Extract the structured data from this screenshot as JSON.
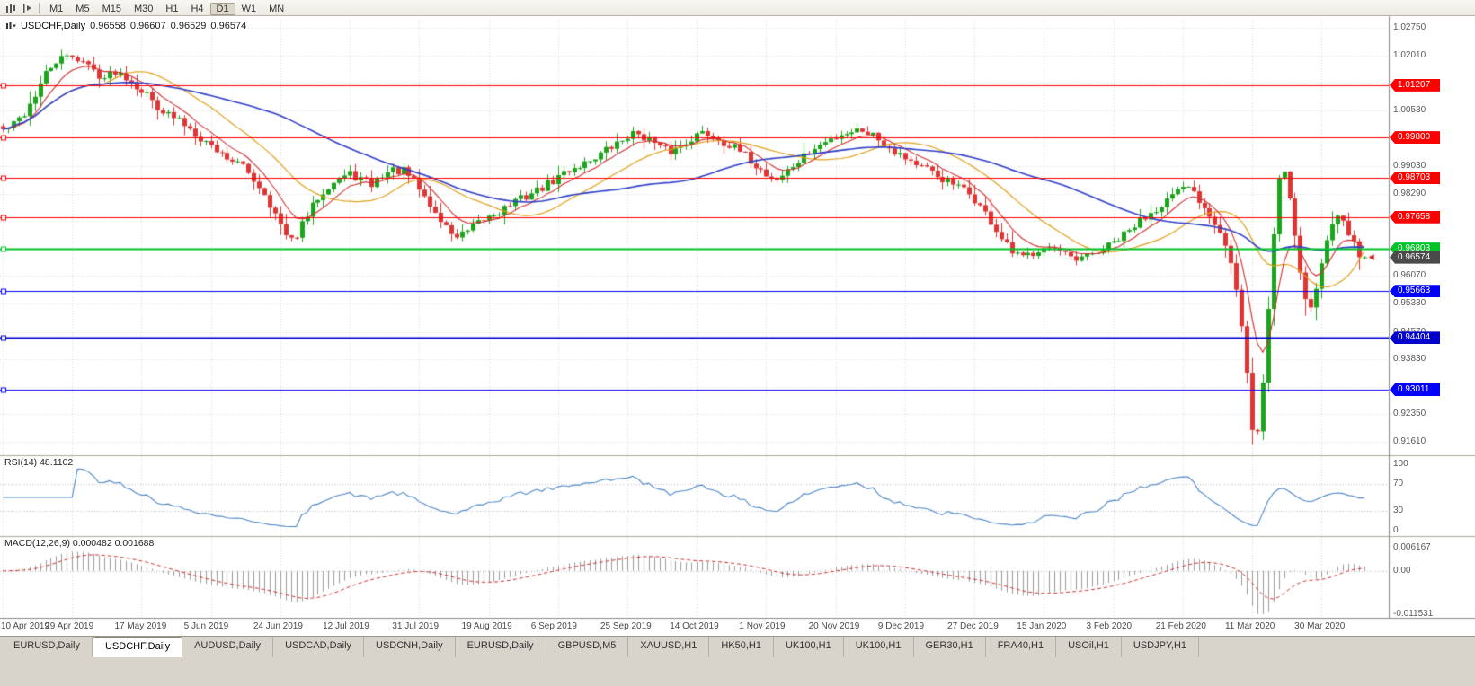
{
  "toolbar": {
    "timeframes": [
      {
        "label": "M1",
        "active": false
      },
      {
        "label": "M5",
        "active": false
      },
      {
        "label": "M15",
        "active": false
      },
      {
        "label": "M30",
        "active": false
      },
      {
        "label": "H1",
        "active": false
      },
      {
        "label": "H4",
        "active": false
      },
      {
        "label": "D1",
        "active": true
      },
      {
        "label": "W1",
        "active": false
      },
      {
        "label": "MN",
        "active": false
      }
    ]
  },
  "chart": {
    "title": {
      "symbol": "USDCHF,Daily",
      "open": "0.96558",
      "high": "0.96607",
      "low": "0.96529",
      "close": "0.96574"
    },
    "price_scale": {
      "ticks": [
        {
          "v": 1.0275,
          "t": "1.02750"
        },
        {
          "v": 1.0201,
          "t": "1.02010"
        },
        {
          "v": 1.0053,
          "t": "1.00530"
        },
        {
          "v": 0.9903,
          "t": "0.99030"
        },
        {
          "v": 0.9829,
          "t": "0.98290"
        },
        {
          "v": 0.9755,
          "t": "0.97550"
        },
        {
          "v": 0.9607,
          "t": "0.96070"
        },
        {
          "v": 0.9533,
          "t": "0.95330"
        },
        {
          "v": 0.9457,
          "t": "0.94570"
        },
        {
          "v": 0.9383,
          "t": "0.93830"
        },
        {
          "v": 0.9235,
          "t": "0.92350"
        },
        {
          "v": 0.9161,
          "t": "0.91610"
        }
      ],
      "hidden_grid": [
        1.0127,
        0.9979,
        0.9681,
        0.9309
      ],
      "current": {
        "price": 0.96574,
        "label": "0.96574",
        "color": "#4A4A4A"
      }
    }
  },
  "rsi": {
    "title": "RSI(14) 48.1102",
    "period": 14,
    "levels": [
      "100",
      "70",
      "30",
      "0"
    ]
  },
  "macd": {
    "title": "MACD(12,26,9) 0.000482 0.001688",
    "fast": 12,
    "slow": 26,
    "signal": 9,
    "scale": {
      "top": "0.006167",
      "zero": "0.00",
      "bottom": "-0.011531"
    },
    "ylim": [
      -0.011531,
      0.006167
    ]
  },
  "chart_data": {
    "type": "candlestick",
    "symbol": "USDCHF",
    "timeframe": "Daily",
    "num_candles": 256,
    "ylim": [
      0.913,
      1.0297
    ],
    "x_labels": [
      {
        "label": "10 Apr 2019",
        "day": 0
      },
      {
        "label": "29 Apr 2019",
        "day": 13
      },
      {
        "label": "17 May 2019",
        "day": 26
      },
      {
        "label": "5 Jun 2019",
        "day": 39
      },
      {
        "label": "24 Jun 2019",
        "day": 52
      },
      {
        "label": "12 Jul 2019",
        "day": 65
      },
      {
        "label": "31 Jul 2019",
        "day": 78
      },
      {
        "label": "19 Aug 2019",
        "day": 91
      },
      {
        "label": "6 Sep 2019",
        "day": 104
      },
      {
        "label": "25 Sep 2019",
        "day": 117
      },
      {
        "label": "14 Oct 2019",
        "day": 130
      },
      {
        "label": "1 Nov 2019",
        "day": 143
      },
      {
        "label": "20 Nov 2019",
        "day": 156
      },
      {
        "label": "9 Dec 2019",
        "day": 169
      },
      {
        "label": "27 Dec 2019",
        "day": 182
      },
      {
        "label": "15 Jan 2020",
        "day": 195
      },
      {
        "label": "3 Feb 2020",
        "day": 208
      },
      {
        "label": "21 Feb 2020",
        "day": 221
      },
      {
        "label": "11 Mar 2020",
        "day": 234
      },
      {
        "label": "30 Mar 2020",
        "day": 247
      }
    ],
    "anchors": [
      [
        0,
        1.0
      ],
      [
        2,
        1.0015
      ],
      [
        4,
        1.0045
      ],
      [
        6,
        1.0095
      ],
      [
        8,
        1.015
      ],
      [
        10,
        1.0185
      ],
      [
        13,
        1.02
      ],
      [
        15,
        1.0185
      ],
      [
        17,
        1.016
      ],
      [
        19,
        1.014
      ],
      [
        21,
        1.016
      ],
      [
        23,
        1.0145
      ],
      [
        25,
        1.012
      ],
      [
        27,
        1.0095
      ],
      [
        29,
        1.0065
      ],
      [
        31,
        1.004
      ],
      [
        33,
        1.0025
      ],
      [
        35,
        1.0005
      ],
      [
        37,
        0.998
      ],
      [
        39,
        0.9958
      ],
      [
        41,
        0.9935
      ],
      [
        43,
        0.992
      ],
      [
        45,
        0.99
      ],
      [
        47,
        0.9868
      ],
      [
        49,
        0.983
      ],
      [
        51,
        0.9772
      ],
      [
        53,
        0.9712
      ],
      [
        54,
        0.97
      ],
      [
        55,
        0.972
      ],
      [
        57,
        0.9768
      ],
      [
        59,
        0.982
      ],
      [
        61,
        0.9852
      ],
      [
        63,
        0.987
      ],
      [
        65,
        0.988
      ],
      [
        67,
        0.9868
      ],
      [
        69,
        0.9852
      ],
      [
        71,
        0.988
      ],
      [
        73,
        0.9892
      ],
      [
        75,
        0.9888
      ],
      [
        77,
        0.9862
      ],
      [
        79,
        0.982
      ],
      [
        81,
        0.9775
      ],
      [
        83,
        0.9738
      ],
      [
        85,
        0.9712
      ],
      [
        87,
        0.9725
      ],
      [
        89,
        0.9748
      ],
      [
        91,
        0.9768
      ],
      [
        93,
        0.9782
      ],
      [
        95,
        0.98
      ],
      [
        97,
        0.9815
      ],
      [
        99,
        0.983
      ],
      [
        101,
        0.9845
      ],
      [
        103,
        0.9862
      ],
      [
        105,
        0.9885
      ],
      [
        107,
        0.99
      ],
      [
        109,
        0.9912
      ],
      [
        111,
        0.9928
      ],
      [
        113,
        0.9945
      ],
      [
        115,
        0.9962
      ],
      [
        117,
        0.9985
      ],
      [
        119,
        0.9992
      ],
      [
        121,
        0.9975
      ],
      [
        123,
        0.995
      ],
      [
        125,
        0.9942
      ],
      [
        127,
        0.9958
      ],
      [
        129,
        0.998
      ],
      [
        131,
        0.9992
      ],
      [
        133,
        0.9985
      ],
      [
        135,
        0.9968
      ],
      [
        137,
        0.995
      ],
      [
        139,
        0.993
      ],
      [
        141,
        0.9905
      ],
      [
        143,
        0.988
      ],
      [
        145,
        0.9868
      ],
      [
        147,
        0.989
      ],
      [
        149,
        0.9915
      ],
      [
        151,
        0.994
      ],
      [
        153,
        0.9958
      ],
      [
        155,
        0.9975
      ],
      [
        157,
        0.999
      ],
      [
        159,
        0.9998
      ],
      [
        161,
        1.0002
      ],
      [
        163,
        0.9988
      ],
      [
        165,
        0.9965
      ],
      [
        167,
        0.9945
      ],
      [
        169,
        0.9928
      ],
      [
        171,
        0.9908
      ],
      [
        173,
        0.9892
      ],
      [
        175,
        0.9875
      ],
      [
        177,
        0.986
      ],
      [
        179,
        0.9845
      ],
      [
        181,
        0.9828
      ],
      [
        183,
        0.9795
      ],
      [
        185,
        0.9752
      ],
      [
        187,
        0.9705
      ],
      [
        189,
        0.9668
      ],
      [
        191,
        0.9655
      ],
      [
        193,
        0.9672
      ],
      [
        195,
        0.969
      ],
      [
        197,
        0.9678
      ],
      [
        199,
        0.966
      ],
      [
        201,
        0.9645
      ],
      [
        203,
        0.9658
      ],
      [
        205,
        0.9672
      ],
      [
        207,
        0.9688
      ],
      [
        209,
        0.9705
      ],
      [
        211,
        0.9728
      ],
      [
        213,
        0.9755
      ],
      [
        215,
        0.978
      ],
      [
        217,
        0.9802
      ],
      [
        219,
        0.9822
      ],
      [
        221,
        0.9838
      ],
      [
        222,
        0.9848
      ],
      [
        223,
        0.983
      ],
      [
        225,
        0.9795
      ],
      [
        227,
        0.9755
      ],
      [
        228,
        0.9728
      ],
      [
        229,
        0.969
      ],
      [
        230,
        0.964
      ],
      [
        231,
        0.9565
      ],
      [
        232,
        0.9465
      ],
      [
        233,
        0.934
      ],
      [
        234,
        0.92
      ],
      [
        235,
        0.9185
      ],
      [
        236,
        0.932
      ],
      [
        237,
        0.952
      ],
      [
        238,
        0.972
      ],
      [
        239,
        0.987
      ],
      [
        240,
        0.989
      ],
      [
        241,
        0.982
      ],
      [
        242,
        0.972
      ],
      [
        243,
        0.9625
      ],
      [
        244,
        0.9545
      ],
      [
        245,
        0.9528
      ],
      [
        246,
        0.9572
      ],
      [
        247,
        0.964
      ],
      [
        248,
        0.97
      ],
      [
        249,
        0.9748
      ],
      [
        250,
        0.9778
      ],
      [
        251,
        0.9768
      ],
      [
        252,
        0.9725
      ],
      [
        253,
        0.969
      ],
      [
        254,
        0.9668
      ],
      [
        255,
        0.9657
      ]
    ],
    "last_candle": {
      "open": 0.96558,
      "high": 0.96607,
      "low": 0.96529,
      "close": 0.96574
    },
    "hlines": [
      {
        "price": 1.01207,
        "label": "1.01207",
        "color": "#FF0000",
        "lw": 1
      },
      {
        "price": 0.998,
        "label": "0.99800",
        "color": "#FF0000",
        "lw": 1
      },
      {
        "price": 0.98703,
        "label": "0.98703",
        "color": "#FF0000",
        "lw": 1
      },
      {
        "price": 0.97658,
        "label": "0.97658",
        "color": "#FF0000",
        "lw": 1
      },
      {
        "price": 0.96803,
        "label": "0.96803",
        "color": "#00C327",
        "lw": 2
      },
      {
        "price": 0.95663,
        "label": "0.95663",
        "color": "#0000FF",
        "lw": 1
      },
      {
        "price": 0.94404,
        "label": "0.94404",
        "color": "#0000CD",
        "lw": 2
      },
      {
        "price": 0.93011,
        "label": "0.93011",
        "color": "#0000FF",
        "lw": 1
      }
    ],
    "indicators": {
      "ma_fast": 8,
      "ma_mid": 20,
      "ma_slow": 50
    }
  },
  "tabs": [
    {
      "label": "EURUSD,Daily",
      "active": false
    },
    {
      "label": "USDCHF,Daily",
      "active": true
    },
    {
      "label": "AUDUSD,Daily",
      "active": false
    },
    {
      "label": "USDCAD,Daily",
      "active": false
    },
    {
      "label": "USDCNH,Daily",
      "active": false
    },
    {
      "label": "EURUSD,Daily",
      "active": false
    },
    {
      "label": "GBPUSD,M5",
      "active": false
    },
    {
      "label": "XAUUSD,H1",
      "active": false
    },
    {
      "label": "HK50,H1",
      "active": false
    },
    {
      "label": "UK100,H1",
      "active": false
    },
    {
      "label": "UK100,H1",
      "active": false
    },
    {
      "label": "GER30,H1",
      "active": false
    },
    {
      "label": "FRA40,H1",
      "active": false
    },
    {
      "label": "USOil,H1",
      "active": false
    },
    {
      "label": "USDJPY,H1",
      "active": false
    }
  ],
  "colors": {
    "background": "#FFFFFF",
    "grid": "#DADADA",
    "bull": "#1CA41C",
    "bear": "#E03535",
    "ma_fast": "#D23030",
    "ma_mid": "#E2A018",
    "ma_slow": "#3040C8",
    "rsi": "#4C86C8",
    "macd_hist": "#9C9C9C",
    "macd_signal": "#D23030"
  }
}
